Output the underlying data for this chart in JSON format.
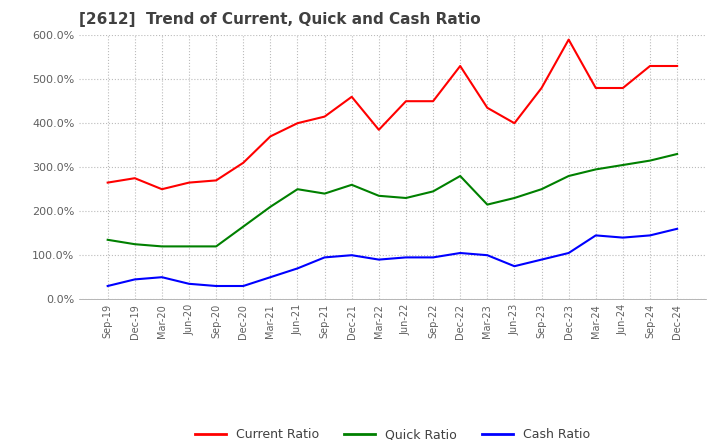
{
  "title": "[2612]  Trend of Current, Quick and Cash Ratio",
  "title_fontsize": 11,
  "title_color": "#404040",
  "x_labels": [
    "Sep-19",
    "Dec-19",
    "Mar-20",
    "Jun-20",
    "Sep-20",
    "Dec-20",
    "Mar-21",
    "Jun-21",
    "Sep-21",
    "Dec-21",
    "Mar-22",
    "Jun-22",
    "Sep-22",
    "Dec-22",
    "Mar-23",
    "Jun-23",
    "Sep-23",
    "Dec-23",
    "Mar-24",
    "Jun-24",
    "Sep-24",
    "Dec-24"
  ],
  "current_ratio": [
    265,
    275,
    250,
    265,
    270,
    310,
    370,
    400,
    415,
    460,
    385,
    450,
    450,
    530,
    435,
    400,
    480,
    590,
    480,
    480,
    530,
    530
  ],
  "quick_ratio": [
    135,
    125,
    120,
    120,
    120,
    165,
    210,
    250,
    240,
    260,
    235,
    230,
    245,
    280,
    215,
    230,
    250,
    280,
    295,
    305,
    315,
    330
  ],
  "cash_ratio": [
    30,
    45,
    50,
    35,
    30,
    30,
    50,
    70,
    95,
    100,
    90,
    95,
    95,
    105,
    100,
    75,
    90,
    105,
    145,
    140,
    145,
    160
  ],
  "current_color": "#FF0000",
  "quick_color": "#008000",
  "cash_color": "#0000FF",
  "ylim": [
    0,
    600
  ],
  "yticks": [
    0,
    100,
    200,
    300,
    400,
    500,
    600
  ],
  "ytick_labels": [
    "0.0%",
    "100.0%",
    "200.0%",
    "300.0%",
    "400.0%",
    "500.0%",
    "600.0%"
  ],
  "background_color": "#ffffff",
  "plot_bg_color": "#ffffff",
  "grid_color": "#bbbbbb",
  "line_width": 1.5
}
